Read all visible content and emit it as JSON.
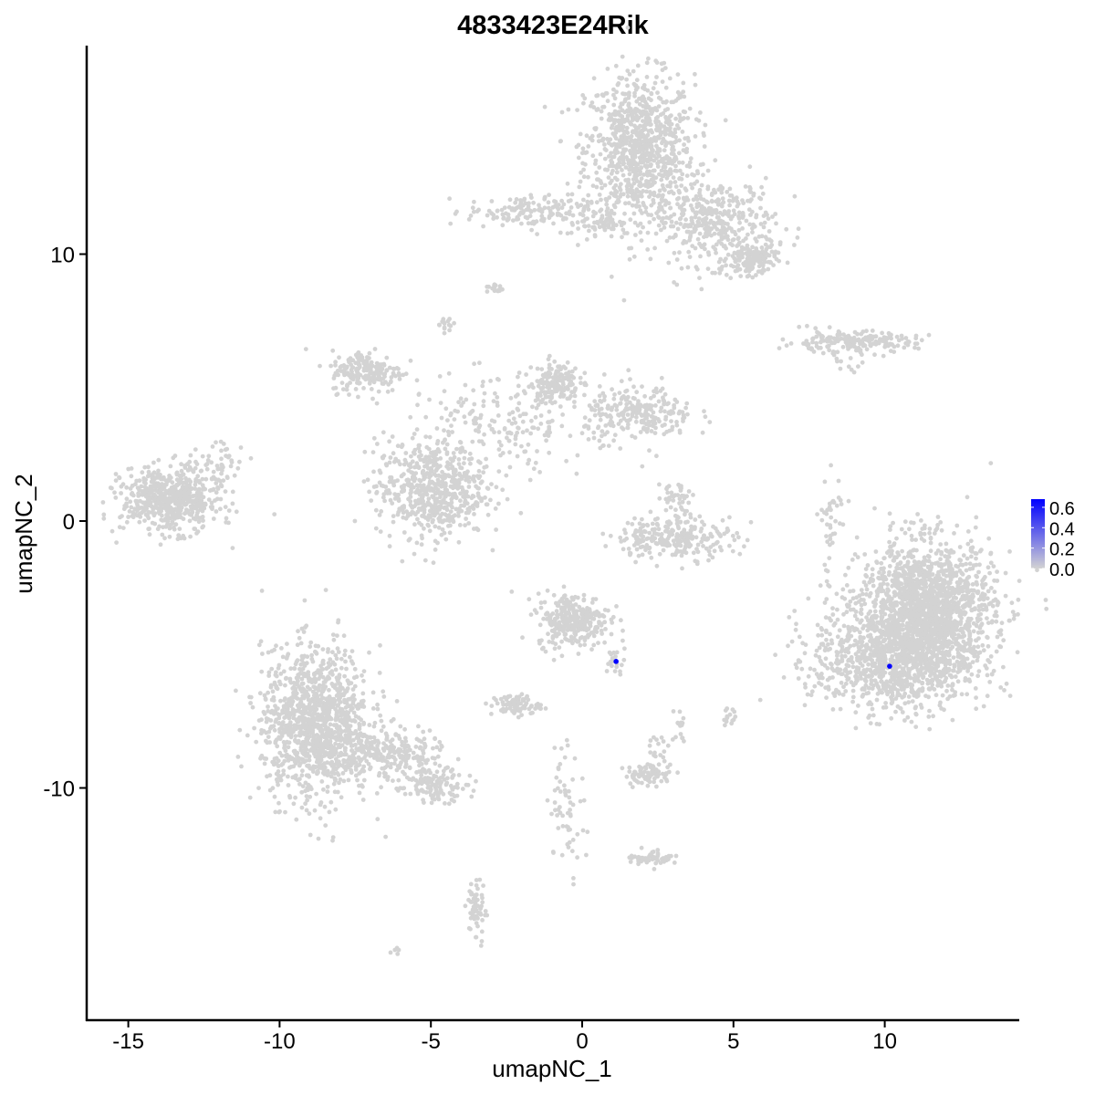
{
  "chart_data": {
    "type": "scatter",
    "title": "4833423E24Rik",
    "xlabel": "umapNC_1",
    "ylabel": "umapNC_2",
    "xlim": [
      -16.4,
      14.4
    ],
    "ylim": [
      -18.7,
      17.8
    ],
    "xticks": [
      -15,
      -10,
      -5,
      0,
      5,
      10
    ],
    "yticks": [
      -10,
      0,
      10
    ],
    "xtick_labels": [
      "-15",
      "-10",
      "-5",
      "0",
      "5",
      "10"
    ],
    "ytick_labels": [
      "-10",
      "0",
      "10"
    ],
    "grid": false,
    "colors": {
      "low": "#d3d3d3",
      "high": "#0000ff"
    },
    "legend": {
      "placement": "right",
      "labels": [
        "0.6",
        "0.4",
        "0.2",
        "0.0"
      ],
      "values": [
        0.6,
        0.4,
        0.2,
        0.0
      ],
      "max": 0.68
    },
    "expressing_cells": [
      {
        "x": 1.12,
        "y": -5.26,
        "value": 0.68
      },
      {
        "x": 10.16,
        "y": -5.44,
        "value": 0.68
      }
    ],
    "clusters": [
      {
        "cx": 1.9,
        "cy": 13.9,
        "sx": 0.9,
        "sy": 1.4,
        "n": 900
      },
      {
        "cx": 4.4,
        "cy": 11.2,
        "sx": 1.0,
        "sy": 0.8,
        "n": 380
      },
      {
        "cx": 5.6,
        "cy": 9.8,
        "sx": 0.4,
        "sy": 0.3,
        "n": 150
      },
      {
        "cx": -1.8,
        "cy": 11.6,
        "sx": 1.0,
        "sy": 0.3,
        "n": 150
      },
      {
        "cx": 0.5,
        "cy": 11.2,
        "sx": 0.6,
        "sy": 0.3,
        "n": 60
      },
      {
        "cx": -2.9,
        "cy": 8.7,
        "sx": 0.15,
        "sy": 0.1,
        "n": 15
      },
      {
        "cx": -4.5,
        "cy": 7.4,
        "sx": 0.15,
        "sy": 0.15,
        "n": 15
      },
      {
        "cx": -7.1,
        "cy": 5.6,
        "sx": 0.6,
        "sy": 0.4,
        "n": 200
      },
      {
        "cx": -5.0,
        "cy": 1.2,
        "sx": 0.9,
        "sy": 0.9,
        "n": 600
      },
      {
        "cx": -0.9,
        "cy": 5.2,
        "sx": 0.4,
        "sy": 0.4,
        "n": 150
      },
      {
        "cx": 1.9,
        "cy": 4.0,
        "sx": 0.9,
        "sy": 0.5,
        "n": 250
      },
      {
        "cx": -2.8,
        "cy": 3.6,
        "sx": 1.5,
        "sy": 0.9,
        "n": 200
      },
      {
        "cx": -13.6,
        "cy": 0.8,
        "sx": 0.8,
        "sy": 0.6,
        "n": 600
      },
      {
        "cx": -11.9,
        "cy": 2.2,
        "sx": 0.4,
        "sy": 0.4,
        "n": 40
      },
      {
        "cx": 3.1,
        "cy": -0.6,
        "sx": 1.0,
        "sy": 0.4,
        "n": 250
      },
      {
        "cx": 3.1,
        "cy": 0.9,
        "sx": 0.3,
        "sy": 0.3,
        "n": 40
      },
      {
        "cx": 8.8,
        "cy": 6.7,
        "sx": 1.1,
        "sy": 0.2,
        "n": 200
      },
      {
        "cx": 8.2,
        "cy": 0.0,
        "sx": 0.2,
        "sy": 1.0,
        "n": 40
      },
      {
        "cx": 11.4,
        "cy": -3.4,
        "sx": 1.1,
        "sy": 1.3,
        "n": 1800
      },
      {
        "cx": 10.2,
        "cy": -5.2,
        "sx": 1.3,
        "sy": 1.0,
        "n": 900
      },
      {
        "cx": -0.3,
        "cy": -3.7,
        "sx": 0.6,
        "sy": 0.5,
        "n": 300
      },
      {
        "cx": 1.1,
        "cy": -5.3,
        "sx": 0.15,
        "sy": 0.3,
        "n": 20
      },
      {
        "cx": -2.2,
        "cy": -6.9,
        "sx": 0.4,
        "sy": 0.2,
        "n": 80
      },
      {
        "cx": -8.8,
        "cy": -7.6,
        "sx": 0.9,
        "sy": 1.4,
        "n": 1200
      },
      {
        "cx": -6.4,
        "cy": -8.8,
        "sx": 0.9,
        "sy": 0.5,
        "n": 250
      },
      {
        "cx": -4.8,
        "cy": -9.9,
        "sx": 0.5,
        "sy": 0.3,
        "n": 120
      },
      {
        "cx": 2.2,
        "cy": -9.5,
        "sx": 0.4,
        "sy": 0.2,
        "n": 80
      },
      {
        "cx": 2.5,
        "cy": -8.6,
        "sx": 0.2,
        "sy": 0.3,
        "n": 20
      },
      {
        "cx": -0.5,
        "cy": -10.6,
        "sx": 0.3,
        "sy": 1.2,
        "n": 60
      },
      {
        "cx": 2.3,
        "cy": -12.6,
        "sx": 0.4,
        "sy": 0.15,
        "n": 50
      },
      {
        "cx": -3.5,
        "cy": -14.6,
        "sx": 0.15,
        "sy": 0.6,
        "n": 60
      },
      {
        "cx": -6.1,
        "cy": -16.1,
        "sx": 0.1,
        "sy": 0.08,
        "n": 5
      },
      {
        "cx": 4.9,
        "cy": -7.3,
        "sx": 0.15,
        "sy": 0.2,
        "n": 15
      },
      {
        "cx": 3.2,
        "cy": -7.6,
        "sx": 0.1,
        "sy": 0.3,
        "n": 15
      },
      {
        "cx": 8.7,
        "cy": 5.9,
        "sx": 0.3,
        "sy": 0.15,
        "n": 10
      }
    ]
  }
}
